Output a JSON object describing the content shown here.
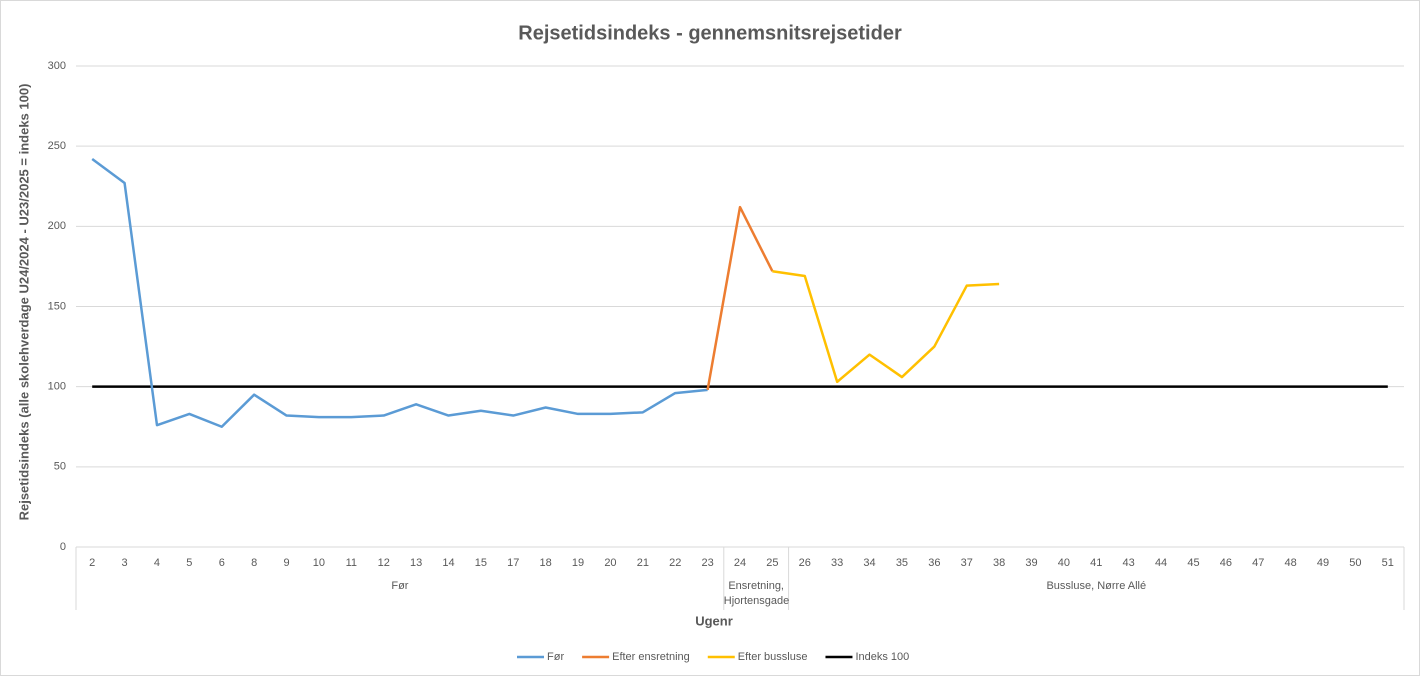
{
  "chart_data": {
    "type": "line",
    "title": "Rejsetidsindeks - gennemsnitsrejsetider",
    "ylabel": "Rejsetidsindeks (alle skolehverdage U24/2024 - U23/2025 = indeks 100)",
    "xlabel": "Ugenr",
    "groups": [
      {
        "label": "Før",
        "categories": [
          "2",
          "3",
          "4",
          "5",
          "6",
          "8",
          "9",
          "10",
          "11",
          "12",
          "13",
          "14",
          "15",
          "17",
          "18",
          "19",
          "20",
          "21",
          "22",
          "23"
        ]
      },
      {
        "label": "Ensretning, Hjortensgade",
        "categories": [
          "24",
          "25"
        ]
      },
      {
        "label": "Bussluse, Nørre Allé",
        "categories": [
          "26",
          "33",
          "34",
          "35",
          "36",
          "37",
          "38",
          "39",
          "40",
          "41",
          "43",
          "44",
          "45",
          "46",
          "47",
          "48",
          "49",
          "50",
          "51"
        ]
      }
    ],
    "series": [
      {
        "name": "Før",
        "color": "#5b9bd5",
        "values": [
          242,
          227,
          76,
          83,
          75,
          95,
          82,
          81,
          81,
          82,
          89,
          82,
          85,
          82,
          87,
          83,
          83,
          84,
          96,
          98,
          null,
          null,
          null,
          null,
          null,
          null,
          null,
          null,
          null,
          null,
          null,
          null,
          null,
          null,
          null,
          null,
          null,
          null,
          null,
          null,
          null
        ]
      },
      {
        "name": "Efter ensretning",
        "color": "#ed7d31",
        "values": [
          null,
          null,
          null,
          null,
          null,
          null,
          null,
          null,
          null,
          null,
          null,
          null,
          null,
          null,
          null,
          null,
          null,
          null,
          null,
          98,
          212,
          172,
          null,
          null,
          null,
          null,
          null,
          null,
          null,
          null,
          null,
          null,
          null,
          null,
          null,
          null,
          null,
          null,
          null,
          null,
          null
        ]
      },
      {
        "name": "Efter bussluse",
        "color": "#ffc000",
        "values": [
          null,
          null,
          null,
          null,
          null,
          null,
          null,
          null,
          null,
          null,
          null,
          null,
          null,
          null,
          null,
          null,
          null,
          null,
          null,
          null,
          null,
          172,
          169,
          103,
          120,
          106,
          125,
          163,
          164,
          null,
          null,
          null,
          null,
          null,
          null,
          null,
          null,
          null,
          null,
          null,
          null
        ]
      },
      {
        "name": "Indeks 100",
        "color": "#000000",
        "values": [
          100,
          100,
          100,
          100,
          100,
          100,
          100,
          100,
          100,
          100,
          100,
          100,
          100,
          100,
          100,
          100,
          100,
          100,
          100,
          100,
          100,
          100,
          100,
          100,
          100,
          100,
          100,
          100,
          100,
          100,
          100,
          100,
          100,
          100,
          100,
          100,
          100,
          100,
          100,
          100,
          100
        ]
      }
    ],
    "ylim": [
      0,
      300
    ],
    "yticks": [
      0,
      50,
      100,
      150,
      200,
      250,
      300
    ],
    "grid": true,
    "legend": "bottom"
  }
}
